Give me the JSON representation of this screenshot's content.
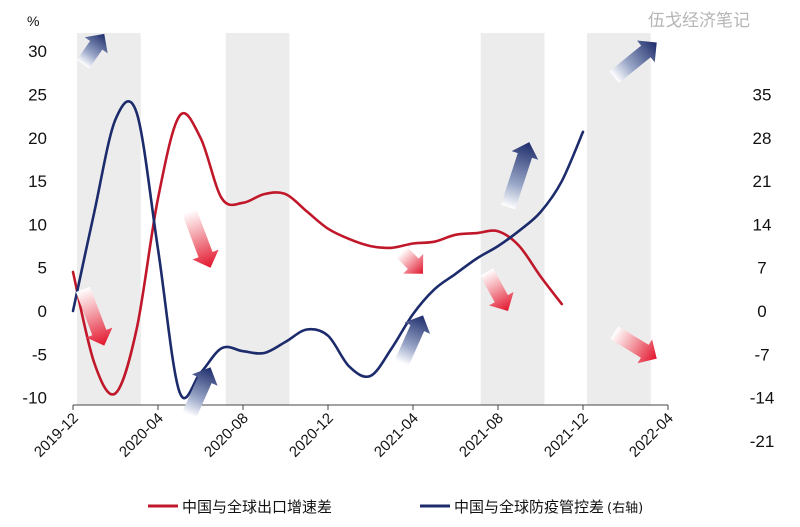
{
  "watermark": "伍戈经济笔记",
  "chart_data": {
    "type": "line",
    "left_unit": "%",
    "x_ticks": [
      "2019-12",
      "2020-04",
      "2020-08",
      "2020-12",
      "2021-04",
      "2021-08",
      "2021-12",
      "2022-04"
    ],
    "y_left": {
      "ticks": [
        "30",
        "25",
        "20",
        "15",
        "10",
        "5",
        "0",
        "-5",
        "-10"
      ],
      "range": [
        -10,
        30
      ]
    },
    "y_right": {
      "ticks": [
        "35",
        "28",
        "21",
        "14",
        "7",
        "0",
        "-7",
        "-14",
        "-21"
      ],
      "range": [
        -21,
        35
      ]
    },
    "shaded_periods": [
      [
        "2019-12",
        "2020-03"
      ],
      [
        "2020-07",
        "2020-10"
      ],
      [
        "2021-07",
        "2021-10"
      ],
      [
        "2021-12",
        "2022-03"
      ]
    ],
    "series": [
      {
        "name": "中国与全球出口增速差",
        "axis": "left",
        "color": "#c0182a",
        "points": [
          [
            "2019-12",
            4.5
          ],
          [
            "2020-01",
            -6
          ],
          [
            "2020-02",
            -9.5
          ],
          [
            "2020-03",
            -2
          ],
          [
            "2020-04",
            13
          ],
          [
            "2020-05",
            22.5
          ],
          [
            "2020-06",
            20
          ],
          [
            "2020-07",
            13
          ],
          [
            "2020-08",
            12.5
          ],
          [
            "2020-09",
            13.5
          ],
          [
            "2020-10",
            13.5
          ],
          [
            "2020-11",
            11.5
          ],
          [
            "2020-12",
            9.5
          ],
          [
            "2021-01",
            8.3
          ],
          [
            "2021-02",
            7.5
          ],
          [
            "2021-03",
            7.3
          ],
          [
            "2021-04",
            7.8
          ],
          [
            "2021-05",
            8
          ],
          [
            "2021-06",
            8.8
          ],
          [
            "2021-07",
            9
          ],
          [
            "2021-08",
            9.2
          ],
          [
            "2021-09",
            7.5
          ],
          [
            "2021-10",
            4
          ],
          [
            "2021-11",
            0.8
          ]
        ]
      },
      {
        "name": "中国与全球防疫管控差",
        "suffix": "(右轴)",
        "axis": "right",
        "color": "#1c2b6b",
        "points": [
          [
            "2019-12",
            0
          ],
          [
            "2020-01",
            16
          ],
          [
            "2020-02",
            31
          ],
          [
            "2020-03",
            32
          ],
          [
            "2020-04",
            10
          ],
          [
            "2020-05",
            -13
          ],
          [
            "2020-06",
            -10
          ],
          [
            "2020-07",
            -6
          ],
          [
            "2020-08",
            -6.5
          ],
          [
            "2020-09",
            -6.8
          ],
          [
            "2020-10",
            -5
          ],
          [
            "2020-11",
            -3
          ],
          [
            "2020-12",
            -4
          ],
          [
            "2021-01",
            -9
          ],
          [
            "2021-02",
            -10.5
          ],
          [
            "2021-03",
            -6
          ],
          [
            "2021-04",
            -0.5
          ],
          [
            "2021-05",
            3.5
          ],
          [
            "2021-06",
            6
          ],
          [
            "2021-07",
            8.5
          ],
          [
            "2021-08",
            10.5
          ],
          [
            "2021-09",
            13
          ],
          [
            "2021-10",
            16
          ],
          [
            "2021-11",
            21
          ],
          [
            "2021-12",
            29
          ]
        ]
      }
    ],
    "arrows": [
      {
        "color": "blue",
        "from": [
          "2019-12",
          28.5
        ],
        "to": [
          "2020-01",
          32
        ]
      },
      {
        "color": "red",
        "from": [
          "2019-12",
          2.5
        ],
        "to": [
          "2020-01",
          -4
        ]
      },
      {
        "color": "red",
        "from": [
          "2020-05",
          11.5
        ],
        "to": [
          "2020-06",
          5
        ]
      },
      {
        "color": "blue",
        "from": [
          "2020-05",
          -12
        ],
        "to": [
          "2020-06",
          -6.5
        ]
      },
      {
        "color": "red",
        "from": [
          "2021-03",
          6.8
        ],
        "to": [
          "2021-04",
          4.3
        ]
      },
      {
        "color": "blue",
        "from": [
          "2021-03",
          -6
        ],
        "to": [
          "2021-04",
          -0.5
        ]
      },
      {
        "color": "red",
        "from": [
          "2021-07",
          4.5
        ],
        "to": [
          "2021-08",
          0
        ]
      },
      {
        "color": "blue",
        "from": [
          "2021-08",
          12
        ],
        "to": [
          "2021-09",
          19.5
        ]
      },
      {
        "color": "blue",
        "from": [
          "2022-01",
          27
        ],
        "to": [
          "2022-03",
          31
        ]
      },
      {
        "color": "red",
        "from": [
          "2022-01",
          -2.5
        ],
        "to": [
          "2022-03",
          -5.5
        ]
      }
    ],
    "legend": {
      "position": "bottom"
    },
    "grid": false
  }
}
